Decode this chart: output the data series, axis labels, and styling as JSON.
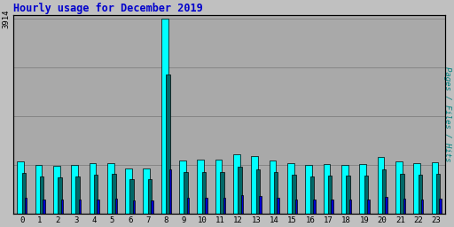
{
  "title": "Hourly usage for December 2019",
  "hours": [
    0,
    1,
    2,
    3,
    4,
    5,
    6,
    7,
    8,
    9,
    10,
    11,
    12,
    13,
    14,
    15,
    16,
    17,
    18,
    19,
    20,
    21,
    22,
    23
  ],
  "hits": [
    1050,
    980,
    970,
    980,
    1020,
    1030,
    920,
    910,
    3914,
    1080,
    1090,
    1095,
    1200,
    1160,
    1080,
    1020,
    980,
    1000,
    990,
    1000,
    1140,
    1050,
    1020,
    1040
  ],
  "files": [
    820,
    760,
    745,
    755,
    790,
    800,
    700,
    695,
    2800,
    840,
    845,
    850,
    950,
    900,
    840,
    795,
    760,
    775,
    765,
    775,
    890,
    815,
    795,
    810
  ],
  "pages": [
    320,
    290,
    285,
    288,
    300,
    305,
    270,
    268,
    900,
    320,
    325,
    328,
    380,
    355,
    320,
    300,
    290,
    295,
    290,
    295,
    340,
    310,
    300,
    308
  ],
  "ylabel_right": "Pages / Files / Hits",
  "ytick_label": "3914",
  "ytick_value": 3914,
  "colors": {
    "hits": "#00ffff",
    "files": "#006868",
    "pages": "#0000cd",
    "title": "#0000cc",
    "ylabel": "#008080",
    "background": "#c0c0c0",
    "plot_bg": "#a9a9a9",
    "grid": "#808080",
    "bar_edge": "#000000"
  },
  "figsize": [
    5.12,
    2.56
  ],
  "dpi": 100
}
